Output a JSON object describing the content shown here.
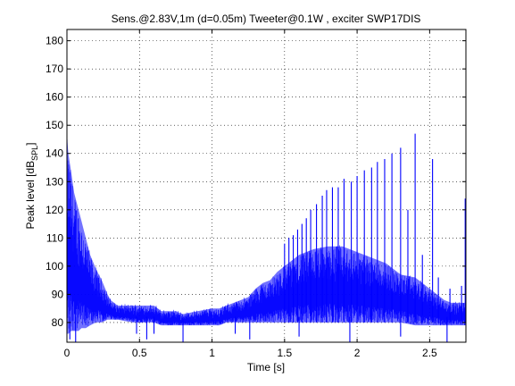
{
  "chart_data": {
    "type": "line",
    "title": "Sens.@2.83V,1m (d=0.05m)   Tweeter@0.1W , exciter SWP17DIS",
    "xlabel": "Time [s]",
    "ylabel_main": "Peak level [dB",
    "ylabel_sub": "SPL",
    "ylabel_close": "]",
    "xlim": [
      0,
      2.75
    ],
    "ylim": [
      73,
      184
    ],
    "grid": true,
    "line_color": "#0000ff",
    "xticks": [
      {
        "value": 0,
        "label": "0"
      },
      {
        "value": 0.5,
        "label": "0.5"
      },
      {
        "value": 1,
        "label": "1"
      },
      {
        "value": 1.5,
        "label": "1.5"
      },
      {
        "value": 2,
        "label": "2"
      },
      {
        "value": 2.5,
        "label": "2.5"
      }
    ],
    "yticks": [
      {
        "value": 80,
        "label": "80"
      },
      {
        "value": 90,
        "label": "90"
      },
      {
        "value": 100,
        "label": "100"
      },
      {
        "value": 110,
        "label": "110"
      },
      {
        "value": 120,
        "label": "120"
      },
      {
        "value": 130,
        "label": "130"
      },
      {
        "value": 140,
        "label": "140"
      },
      {
        "value": 150,
        "label": "150"
      },
      {
        "value": 160,
        "label": "160"
      },
      {
        "value": 170,
        "label": "170"
      },
      {
        "value": 180,
        "label": "180"
      }
    ],
    "series": [
      {
        "envelope": {
          "t": [
            0.0,
            0.01,
            0.03,
            0.05,
            0.08,
            0.1,
            0.13,
            0.16,
            0.2,
            0.24,
            0.28,
            0.3,
            0.35,
            0.45,
            0.55,
            0.6,
            0.65,
            0.7,
            0.75,
            0.8,
            0.9,
            1.0,
            1.05,
            1.1,
            1.15,
            1.2,
            1.25,
            1.3,
            1.35,
            1.4,
            1.45,
            1.5,
            1.55,
            1.6,
            1.7,
            1.8,
            1.9,
            2.0,
            2.1,
            2.2,
            2.3,
            2.4,
            2.45,
            2.5,
            2.55,
            2.6,
            2.65,
            2.7,
            2.75
          ],
          "upper": [
            146,
            140,
            133,
            126,
            120,
            116,
            110,
            104,
            99,
            95,
            90,
            88,
            86,
            86,
            86,
            86,
            84,
            84,
            84,
            83,
            84,
            85,
            85,
            86,
            87,
            88,
            89,
            92,
            94,
            95,
            98,
            100,
            102,
            104,
            106,
            107,
            107,
            105,
            103,
            101,
            97,
            96,
            94,
            92,
            90,
            88,
            87,
            87,
            87
          ],
          "lower": [
            76,
            76,
            77,
            77,
            77,
            78,
            78,
            79,
            80,
            80,
            81,
            81,
            81,
            80,
            80,
            80,
            79,
            79,
            79,
            79,
            79,
            79,
            79,
            80,
            80,
            80,
            80,
            80,
            80,
            80,
            80,
            80,
            80,
            80,
            80,
            80,
            80,
            80,
            80,
            80,
            80,
            79,
            79,
            79,
            79,
            79,
            79,
            79,
            79
          ]
        },
        "peaks": [
          {
            "t": 1.5,
            "y": 108
          },
          {
            "t": 1.53,
            "y": 110
          },
          {
            "t": 1.56,
            "y": 111
          },
          {
            "t": 1.59,
            "y": 113
          },
          {
            "t": 1.62,
            "y": 115
          },
          {
            "t": 1.65,
            "y": 117
          },
          {
            "t": 1.68,
            "y": 120
          },
          {
            "t": 1.72,
            "y": 122
          },
          {
            "t": 1.76,
            "y": 125
          },
          {
            "t": 1.79,
            "y": 127
          },
          {
            "t": 1.83,
            "y": 128
          },
          {
            "t": 1.87,
            "y": 128
          },
          {
            "t": 1.91,
            "y": 131
          },
          {
            "t": 1.96,
            "y": 130
          },
          {
            "t": 2.0,
            "y": 132
          },
          {
            "t": 2.05,
            "y": 134
          },
          {
            "t": 2.1,
            "y": 135
          },
          {
            "t": 2.14,
            "y": 137
          },
          {
            "t": 2.19,
            "y": 138
          },
          {
            "t": 2.24,
            "y": 140
          },
          {
            "t": 2.3,
            "y": 142
          },
          {
            "t": 2.35,
            "y": 120
          },
          {
            "t": 2.4,
            "y": 147
          },
          {
            "t": 2.45,
            "y": 104
          },
          {
            "t": 2.52,
            "y": 138
          },
          {
            "t": 2.56,
            "y": 96
          },
          {
            "t": 2.64,
            "y": 92
          },
          {
            "t": 2.72,
            "y": 93
          },
          {
            "t": 2.745,
            "y": 124
          }
        ],
        "dips": [
          {
            "t": 0.02,
            "y": 74
          },
          {
            "t": 0.06,
            "y": 73
          },
          {
            "t": 0.48,
            "y": 76
          },
          {
            "t": 0.55,
            "y": 74
          },
          {
            "t": 0.6,
            "y": 76
          },
          {
            "t": 0.8,
            "y": 73
          },
          {
            "t": 1.16,
            "y": 76
          },
          {
            "t": 1.26,
            "y": 74
          },
          {
            "t": 1.6,
            "y": 75
          },
          {
            "t": 1.95,
            "y": 73
          },
          {
            "t": 2.3,
            "y": 75
          },
          {
            "t": 2.62,
            "y": 73
          }
        ]
      }
    ]
  }
}
